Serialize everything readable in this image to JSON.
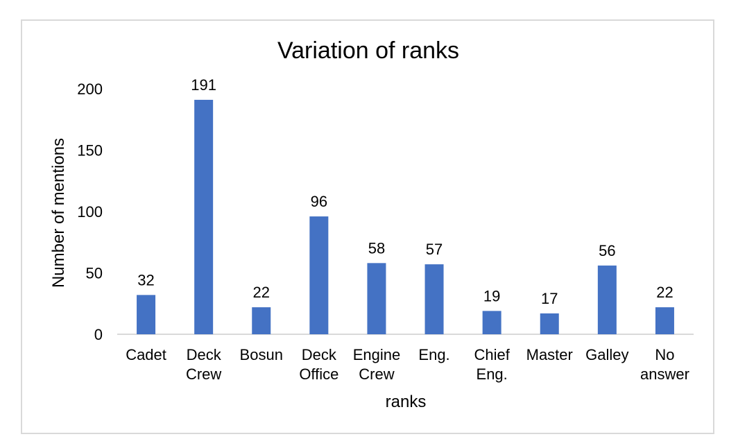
{
  "chart_data": {
    "type": "bar",
    "title": "Variation of ranks",
    "xlabel": "ranks",
    "ylabel": "Number of mentions",
    "categories": [
      [
        "Cadet"
      ],
      [
        "Deck",
        "Crew"
      ],
      [
        "Bosun"
      ],
      [
        "Deck",
        "Office"
      ],
      [
        "Engine",
        "Crew"
      ],
      [
        "Eng."
      ],
      [
        "Chief",
        "Eng."
      ],
      [
        "Master"
      ],
      [
        "Galley"
      ],
      [
        "No",
        "answer"
      ]
    ],
    "values": [
      32,
      191,
      22,
      96,
      58,
      57,
      19,
      17,
      56,
      22
    ],
    "ylim": [
      0,
      200
    ],
    "yticks": [
      0,
      50,
      100,
      150,
      200
    ],
    "grid": false,
    "legend": "none",
    "bar_color": "#4472c4",
    "axis_color": "#d9d9d9"
  }
}
